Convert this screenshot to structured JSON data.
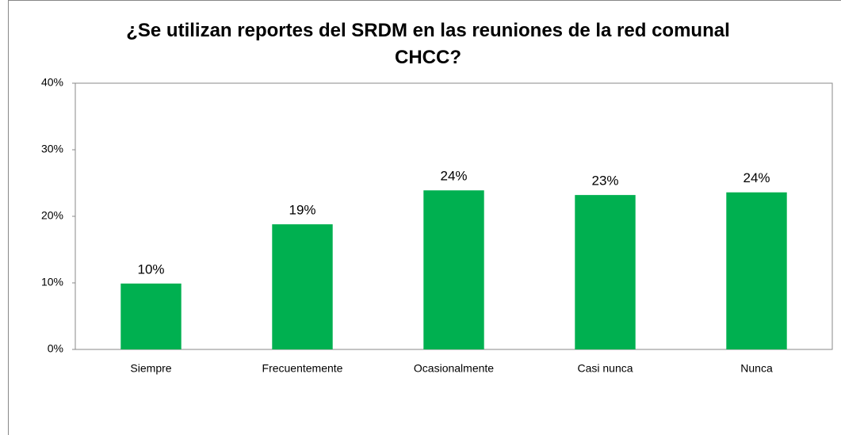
{
  "chart_data": {
    "type": "bar",
    "title": "¿Se utilizan reportes del SRDM en las reuniones de la red comunal CHCC?",
    "categories": [
      "Siempre",
      "Frecuentemente",
      "Ocasionalmente",
      "Casi nunca",
      "Nunca"
    ],
    "values": [
      9.9,
      18.8,
      23.9,
      23.2,
      23.6
    ],
    "value_labels": [
      "10%",
      "19%",
      "24%",
      "23%",
      "24%"
    ],
    "color": "#00b050",
    "ylim": [
      0,
      40
    ],
    "yticks": [
      {
        "value": 0,
        "label": "0%"
      },
      {
        "value": 10,
        "label": "10%"
      },
      {
        "value": 20,
        "label": "20%"
      },
      {
        "value": 30,
        "label": "30%"
      },
      {
        "value": 40,
        "label": "40%"
      }
    ],
    "grid": false
  }
}
